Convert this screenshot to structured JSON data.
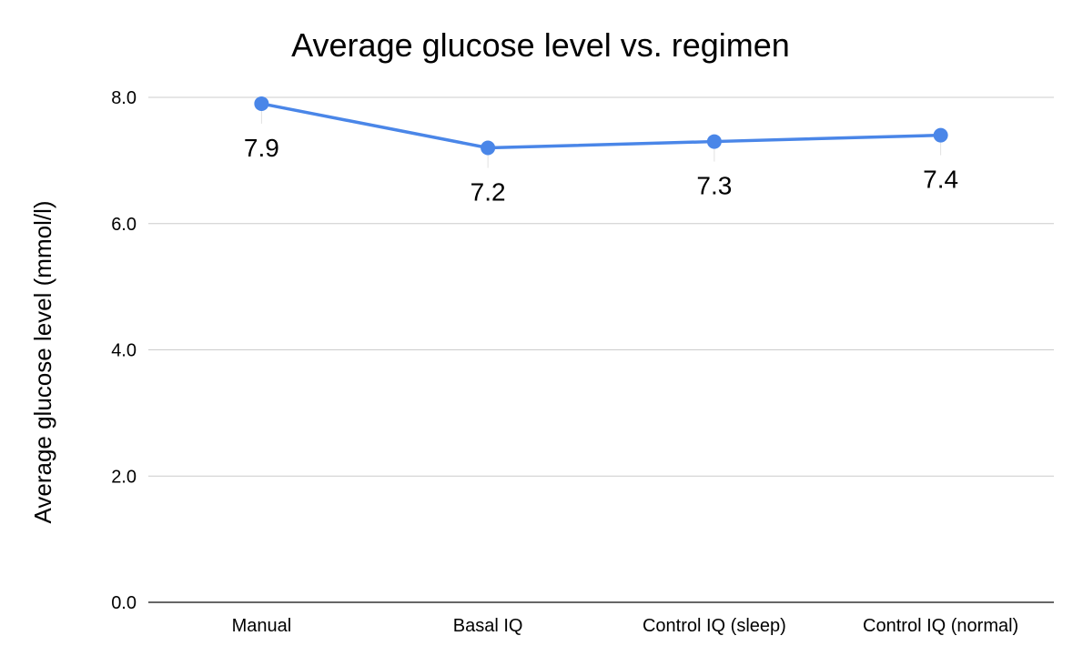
{
  "chart_data": {
    "type": "line",
    "title": "Average glucose level vs. regimen",
    "xlabel": "",
    "ylabel": "Average glucose level (mmol/l)",
    "categories": [
      "Manual",
      "Basal IQ",
      "Control IQ (sleep)",
      "Control IQ (normal)"
    ],
    "series": [
      {
        "values": [
          7.9,
          7.2,
          7.3,
          7.4
        ],
        "color": "#4a86e8",
        "data_labels": [
          "7.9",
          "7.2",
          "7.3",
          "7.4"
        ]
      }
    ],
    "ylim": [
      0,
      8
    ],
    "yticks": [
      "0.0",
      "2.0",
      "4.0",
      "6.0",
      "8.0"
    ],
    "grid": true,
    "legend": "none"
  }
}
